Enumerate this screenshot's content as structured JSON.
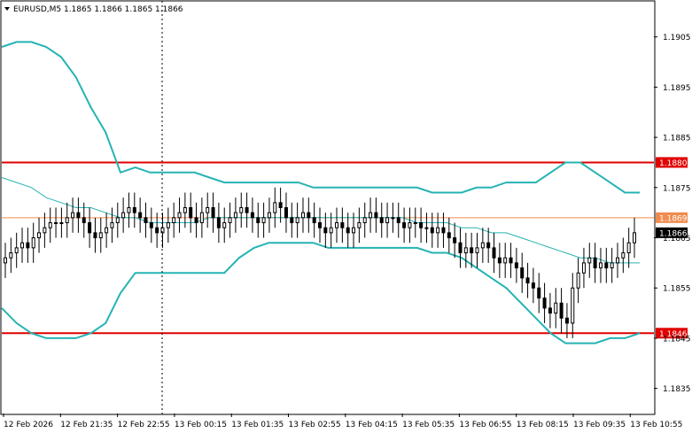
{
  "chart_data": {
    "type": "candlestick",
    "title": "EURUSD,M5 1.1865 1.1866 1.1865 1.1866",
    "symbol": "EURUSD",
    "timeframe": "M5",
    "ohlc_header": [
      1.1865,
      1.1866,
      1.1865,
      1.1866
    ],
    "ylim": [
      1.183,
      1.1912
    ],
    "y_ticks": [
      "1.1905",
      "1.1895",
      "1.1885",
      "1.1875",
      "1.1865",
      "1.1855",
      "1.1845",
      "1.1835"
    ],
    "x_ticks": [
      "12 Feb 2026",
      "12 Feb 21:35",
      "12 Feb 22:55",
      "13 Feb 00:15",
      "13 Feb 01:35",
      "13 Feb 02:55",
      "13 Feb 04:15",
      "13 Feb 05:35",
      "13 Feb 06:55",
      "13 Feb 08:15",
      "13 Feb 09:35",
      "13 Feb 10:55"
    ],
    "levels": [
      {
        "label": "1.1880",
        "value": 1.188,
        "color": "#e00000"
      },
      {
        "label": "1.1869",
        "value": 1.1869,
        "color": "#f08c50"
      },
      {
        "label": "1.1846",
        "value": 1.1846,
        "color": "#e00000"
      }
    ],
    "current_price": {
      "label": "1.1866",
      "value": 1.1866
    },
    "grid": false,
    "colors": {
      "bollinger": "#26b3b3",
      "candle": "#000000"
    },
    "bollinger": {
      "upper": [
        1.1903,
        1.1904,
        1.1904,
        1.1903,
        1.1901,
        1.1897,
        1.1891,
        1.1886,
        1.1878,
        1.1879,
        1.1878,
        1.1878,
        1.1878,
        1.1878,
        1.1877,
        1.1876,
        1.1876,
        1.1876,
        1.1876,
        1.1876,
        1.1876,
        1.1875,
        1.1875,
        1.1875,
        1.1875,
        1.1875,
        1.1875,
        1.1875,
        1.1875,
        1.1874,
        1.1874,
        1.1874,
        1.1875,
        1.1875,
        1.1876,
        1.1876,
        1.1876,
        1.1878,
        1.188,
        1.188,
        1.1878,
        1.1876,
        1.1874,
        1.1874
      ],
      "middle": [
        1.1877,
        1.1876,
        1.1875,
        1.1873,
        1.1872,
        1.1871,
        1.1871,
        1.187,
        1.1869,
        1.1869,
        1.1868,
        1.1868,
        1.1868,
        1.1868,
        1.1869,
        1.1869,
        1.1869,
        1.1869,
        1.1869,
        1.1869,
        1.1869,
        1.1869,
        1.1869,
        1.1869,
        1.1869,
        1.1869,
        1.1869,
        1.1869,
        1.1868,
        1.1868,
        1.1868,
        1.1867,
        1.1867,
        1.1866,
        1.1866,
        1.1865,
        1.1864,
        1.1863,
        1.1862,
        1.1861,
        1.1861,
        1.186,
        1.186,
        1.186
      ],
      "lower": [
        1.1851,
        1.1848,
        1.1846,
        1.1845,
        1.1845,
        1.1845,
        1.1846,
        1.1848,
        1.1854,
        1.1858,
        1.1858,
        1.1858,
        1.1858,
        1.1858,
        1.1858,
        1.1858,
        1.1861,
        1.1863,
        1.1864,
        1.1864,
        1.1864,
        1.1864,
        1.1863,
        1.1863,
        1.1863,
        1.1863,
        1.1863,
        1.1863,
        1.1863,
        1.1862,
        1.1862,
        1.1861,
        1.1859,
        1.1857,
        1.1855,
        1.1852,
        1.1849,
        1.1846,
        1.1844,
        1.1844,
        1.1844,
        1.1845,
        1.1845,
        1.1846
      ]
    },
    "candles_close": [
      1.1861,
      1.1862,
      1.1863,
      1.1864,
      1.1863,
      1.1865,
      1.1866,
      1.1867,
      1.1868,
      1.1868,
      1.1868,
      1.1869,
      1.187,
      1.1869,
      1.1868,
      1.1866,
      1.1865,
      1.1866,
      1.1867,
      1.1868,
      1.1869,
      1.187,
      1.1871,
      1.187,
      1.1869,
      1.1868,
      1.1867,
      1.1866,
      1.1867,
      1.1868,
      1.1869,
      1.187,
      1.1871,
      1.1869,
      1.1868,
      1.187,
      1.1871,
      1.1869,
      1.1867,
      1.1868,
      1.1869,
      1.187,
      1.1871,
      1.187,
      1.1869,
      1.1868,
      1.1869,
      1.187,
      1.1872,
      1.1871,
      1.1869,
      1.1868,
      1.1869,
      1.187,
      1.1869,
      1.1868,
      1.1867,
      1.1866,
      1.1867,
      1.1868,
      1.1867,
      1.1866,
      1.1867,
      1.1868,
      1.1869,
      1.187,
      1.1869,
      1.1868,
      1.1869,
      1.1869,
      1.1868,
      1.1867,
      1.1868,
      1.1868,
      1.1867,
      1.1867,
      1.1866,
      1.1867,
      1.1866,
      1.1865,
      1.1864,
      1.1862,
      1.1863,
      1.1862,
      1.1863,
      1.1864,
      1.1863,
      1.1861,
      1.186,
      1.1861,
      1.186,
      1.1859,
      1.1857,
      1.1856,
      1.1855,
      1.1853,
      1.1851,
      1.185,
      1.1852,
      1.1849,
      1.1848,
      1.1855,
      1.1858,
      1.186,
      1.1861,
      1.1859,
      1.186,
      1.1859,
      1.186,
      1.1861,
      1.1862,
      1.1864,
      1.1866
    ]
  }
}
